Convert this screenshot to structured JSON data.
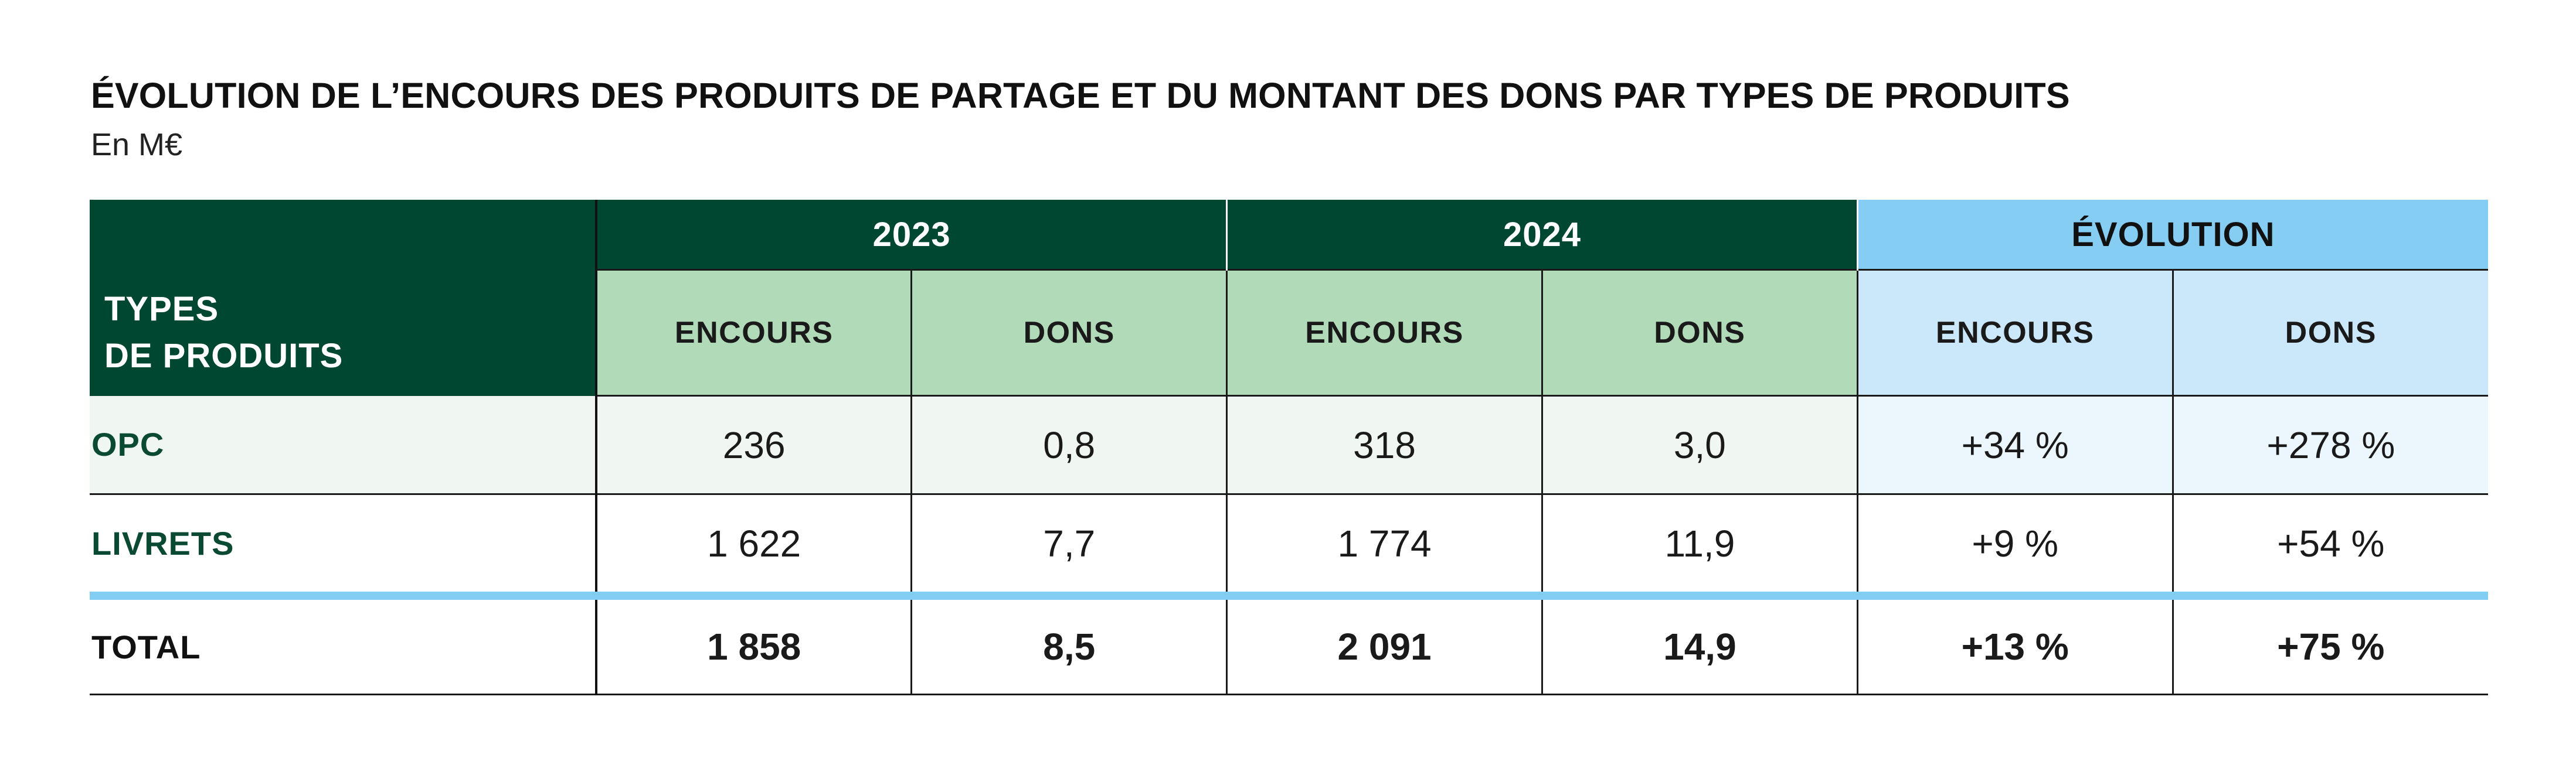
{
  "title": "ÉVOLUTION DE L’ENCOURS DES PRODUITS DE PARTAGE ET DU MONTANT DES DONS PAR TYPES DE PRODUITS",
  "subtitle": "En M€",
  "table": {
    "corner_line1": "TYPES",
    "corner_line2": "DE PRODUITS",
    "groups": [
      "2023",
      "2024",
      "ÉVOLUTION"
    ],
    "subheaders": [
      "ENCOURS",
      "DONS",
      "ENCOURS",
      "DONS",
      "ENCOURS",
      "DONS"
    ],
    "rows": [
      {
        "label": "OPC",
        "values": [
          "236",
          "0,8",
          "318",
          "3,0",
          "+34 %",
          "+278 %"
        ]
      },
      {
        "label": "LIVRETS",
        "values": [
          "1 622",
          "7,7",
          "1 774",
          "11,9",
          "+9 %",
          "+54 %"
        ]
      },
      {
        "label": "TOTAL",
        "values": [
          "1 858",
          "8,5",
          "2 091",
          "14,9",
          "+13 %",
          "+75 %"
        ]
      }
    ]
  },
  "colors": {
    "dark_green": "#004731",
    "light_green": "#b0dab8",
    "blue": "#85cdf2",
    "light_blue": "#cbe8fb"
  }
}
